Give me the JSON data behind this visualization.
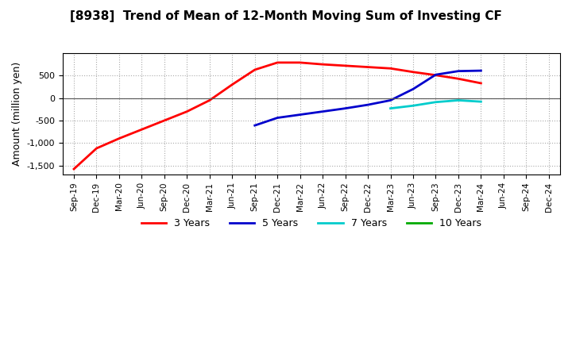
{
  "title": "[8938]  Trend of Mean of 12-Month Moving Sum of Investing CF",
  "ylabel": "Amount (million yen)",
  "xlim_start": "Sep-19",
  "xlim_end": "Dec-24",
  "ylim": [
    -1700,
    1000
  ],
  "yticks": [
    -1500,
    -1000,
    -500,
    0,
    500
  ],
  "background_color": "#ffffff",
  "grid_color": "#aaaaaa",
  "x_labels": [
    "Sep-19",
    "Dec-19",
    "Mar-20",
    "Jun-20",
    "Sep-20",
    "Dec-20",
    "Mar-21",
    "Jun-21",
    "Sep-21",
    "Dec-21",
    "Mar-22",
    "Jun-22",
    "Sep-22",
    "Dec-22",
    "Mar-23",
    "Jun-23",
    "Sep-23",
    "Dec-23",
    "Mar-24",
    "Jun-24",
    "Sep-24",
    "Dec-24"
  ],
  "series": {
    "3yr": {
      "color": "#ff0000",
      "x_indices": [
        0,
        1,
        2,
        3,
        4,
        5,
        6,
        7,
        8,
        9,
        10,
        11,
        12,
        13,
        14,
        15,
        16,
        17,
        18
      ],
      "y": [
        -1580,
        -1120,
        -900,
        -700,
        -500,
        -300,
        -50,
        300,
        630,
        790,
        790,
        750,
        720,
        690,
        660,
        580,
        510,
        430,
        330
      ]
    },
    "5yr": {
      "color": "#0000cc",
      "x_indices": [
        8,
        9,
        10,
        11,
        12,
        13,
        14,
        15,
        16,
        17,
        18
      ],
      "y": [
        -610,
        -440,
        -370,
        -300,
        -230,
        -150,
        -50,
        200,
        520,
        600,
        610
      ]
    },
    "7yr": {
      "color": "#00cccc",
      "x_indices": [
        14,
        15,
        16,
        17,
        18
      ],
      "y": [
        -230,
        -170,
        -90,
        -50,
        -80
      ]
    },
    "10yr": {
      "color": "#00aa00",
      "x_indices": [],
      "y": []
    }
  },
  "legend": [
    {
      "label": "3 Years",
      "color": "#ff0000"
    },
    {
      "label": "5 Years",
      "color": "#0000cc"
    },
    {
      "label": "7 Years",
      "color": "#00cccc"
    },
    {
      "label": "10 Years",
      "color": "#00aa00"
    }
  ]
}
